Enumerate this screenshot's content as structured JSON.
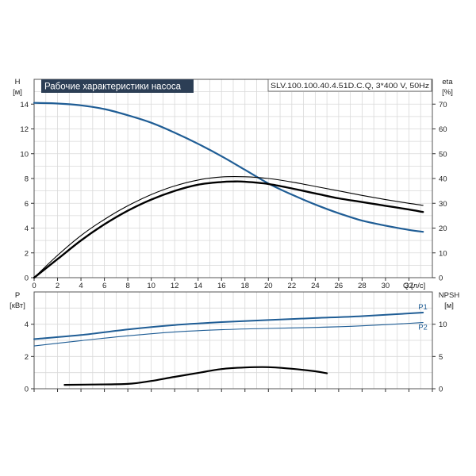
{
  "chart_data": [
    {
      "type": "line",
      "title": "Рабочие характеристики насоса",
      "model_label": "SLV.100.100.40.4.51D.C.Q, 3*400 V, 50Hz",
      "ylabel_left": "H",
      "ylabel_left_unit": "[м]",
      "ylabel_right": "eta",
      "ylabel_right_unit": "[%]",
      "xlabel": "Q [л/с]",
      "xlim": [
        0,
        34
      ],
      "xticks": [
        0,
        2,
        4,
        6,
        8,
        10,
        12,
        14,
        16,
        18,
        20,
        22,
        24,
        26,
        28,
        30,
        32
      ],
      "ylim_left": [
        0,
        16
      ],
      "yticks_left": [
        0,
        2,
        4,
        6,
        8,
        10,
        12,
        14
      ],
      "ylim_right": [
        0,
        80
      ],
      "yticks_right": [
        0,
        10,
        20,
        30,
        40,
        50,
        60,
        70
      ],
      "grid": true,
      "series": [
        {
          "axis": "left",
          "color": "#1f5d95",
          "points": [
            [
              0,
              14.1
            ],
            [
              2,
              14.05
            ],
            [
              4,
              13.9
            ],
            [
              6,
              13.6
            ],
            [
              8,
              13.1
            ],
            [
              10,
              12.5
            ],
            [
              12,
              11.7
            ],
            [
              14,
              10.8
            ],
            [
              16,
              9.8
            ],
            [
              18,
              8.7
            ],
            [
              20,
              7.6
            ],
            [
              22,
              6.7
            ],
            [
              24,
              5.9
            ],
            [
              26,
              5.2
            ],
            [
              28,
              4.6
            ],
            [
              30,
              4.2
            ],
            [
              32,
              3.85
            ],
            [
              33.2,
              3.7
            ]
          ]
        },
        {
          "axis": "right",
          "color": "#000000",
          "points": [
            [
              0,
              0
            ],
            [
              2,
              7.5
            ],
            [
              4,
              15
            ],
            [
              6,
              21.5
            ],
            [
              8,
              27
            ],
            [
              10,
              31.5
            ],
            [
              12,
              35
            ],
            [
              14,
              37.5
            ],
            [
              16,
              38.6
            ],
            [
              17,
              38.8
            ],
            [
              18,
              38.7
            ],
            [
              20,
              37.8
            ],
            [
              22,
              36
            ],
            [
              24,
              34
            ],
            [
              26,
              32
            ],
            [
              28,
              30.5
            ],
            [
              30,
              29
            ],
            [
              32,
              27.5
            ],
            [
              33.2,
              26.5
            ]
          ]
        },
        {
          "axis": "right",
          "color": "#000000",
          "points": [
            [
              0,
              0
            ],
            [
              2,
              9
            ],
            [
              4,
              17
            ],
            [
              6,
              23.5
            ],
            [
              8,
              29
            ],
            [
              10,
              33.5
            ],
            [
              12,
              37
            ],
            [
              14,
              39.4
            ],
            [
              16,
              40.6
            ],
            [
              18,
              40.7
            ],
            [
              20,
              40
            ],
            [
              22,
              38.6
            ],
            [
              24,
              36.8
            ],
            [
              26,
              35
            ],
            [
              28,
              33.2
            ],
            [
              30,
              31.5
            ],
            [
              32,
              30
            ],
            [
              33.2,
              29.2
            ]
          ]
        }
      ]
    },
    {
      "type": "line",
      "ylabel_left": "P",
      "ylabel_left_unit": "[кВт]",
      "ylabel_right": "NPSH",
      "ylabel_right_unit": "[м]",
      "xlim": [
        0,
        34
      ],
      "ylim_left": [
        0,
        6
      ],
      "yticks_left": [
        0,
        2,
        4
      ],
      "ylim_right": [
        0,
        15
      ],
      "yticks_right": [
        0,
        5,
        10
      ],
      "grid": true,
      "series": [
        {
          "name": "P1",
          "axis": "left",
          "color": "#1f5d95",
          "points": [
            [
              0,
              3.08
            ],
            [
              4,
              3.33
            ],
            [
              8,
              3.68
            ],
            [
              12,
              3.95
            ],
            [
              16,
              4.13
            ],
            [
              20,
              4.26
            ],
            [
              24,
              4.38
            ],
            [
              28,
              4.5
            ],
            [
              33.2,
              4.72
            ]
          ]
        },
        {
          "name": "P2",
          "axis": "left",
          "color": "#1f5d95",
          "points": [
            [
              0,
              2.65
            ],
            [
              4,
              2.98
            ],
            [
              8,
              3.28
            ],
            [
              12,
              3.52
            ],
            [
              16,
              3.66
            ],
            [
              20,
              3.74
            ],
            [
              24,
              3.8
            ],
            [
              28,
              3.9
            ],
            [
              33.2,
              4.1
            ]
          ]
        },
        {
          "axis": "right",
          "color": "#000000",
          "points": [
            [
              2.6,
              0.6
            ],
            [
              5,
              0.65
            ],
            [
              8,
              0.75
            ],
            [
              10,
              1.2
            ],
            [
              12,
              1.85
            ],
            [
              14,
              2.45
            ],
            [
              16,
              3.05
            ],
            [
              18,
              3.3
            ],
            [
              20,
              3.35
            ],
            [
              22,
              3.1
            ],
            [
              24,
              2.7
            ],
            [
              25,
              2.4
            ]
          ]
        }
      ]
    }
  ]
}
